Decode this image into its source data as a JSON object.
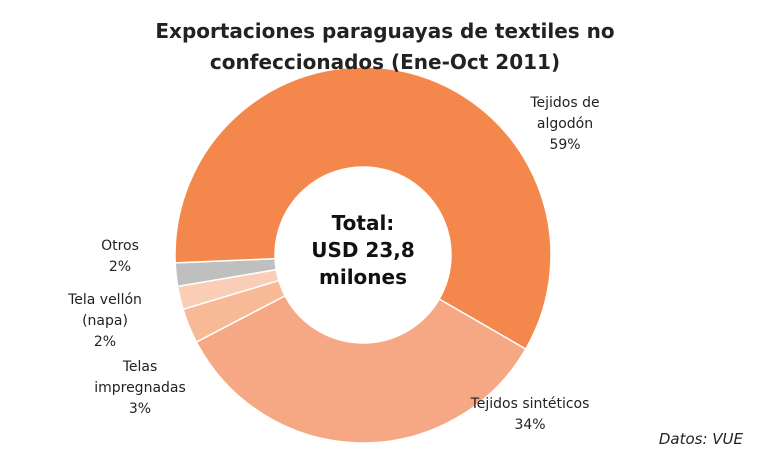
{
  "chart_data": {
    "type": "donut",
    "title": "Exportaciones paraguayas de textiles no confeccionados (Ene-Oct 2011)",
    "center_text": [
      "Total:",
      "USD 23,8",
      "milones"
    ],
    "source": "Datos: VUE",
    "categories": [
      "Tejidos sintéticos",
      "Telas impregnadas",
      "Tela vellón (napa)",
      "Otros",
      "Tejidos de algodón"
    ],
    "values": [
      34,
      3,
      2,
      2,
      59
    ],
    "value_labels": [
      "34%",
      "3%",
      "2%",
      "2%",
      "59%"
    ],
    "colors": [
      "#f5a883",
      "#f7b996",
      "#f9cdb6",
      "#bfbfbf",
      "#f4874b"
    ]
  }
}
